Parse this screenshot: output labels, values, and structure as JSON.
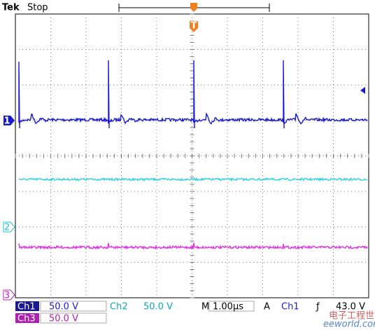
{
  "header": {
    "brand": "Tek",
    "status": "Stop"
  },
  "markers": {
    "ch1": "1",
    "ch2": "2",
    "ch3": "3",
    "trigger": "T"
  },
  "readout": {
    "ch1": {
      "label": "Ch1",
      "scale": "50.0 V"
    },
    "ch2": {
      "label": "Ch2",
      "scale": "50.0 V"
    },
    "ch3": {
      "label": "Ch3",
      "scale": "50.0 V"
    },
    "timebase": {
      "label": "M",
      "value": "1.00µs"
    },
    "trigger": {
      "label": "A",
      "source": "Ch1",
      "slope": "ƒ",
      "level": "43.0 V"
    }
  },
  "watermark": {
    "text": "电子工程世界",
    "url": "eeworld.com.cn"
  }
}
